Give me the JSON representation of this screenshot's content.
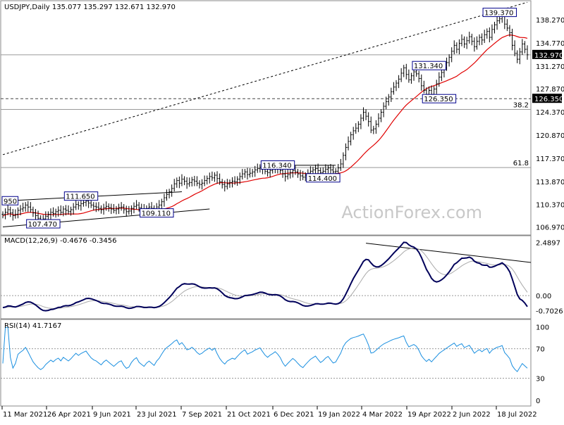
{
  "chart_data": {
    "type": "line",
    "symbol_header": "USDJPY,Daily  135.077 135.297 132.671 132.970",
    "watermark": "ActionForex.com",
    "x_ticks": [
      "11 Mar 2021",
      "26 Apr 2021",
      "9 Jun 2021",
      "23 Jul 2021",
      "7 Sep 2021",
      "21 Oct 2021",
      "6 Dec 2021",
      "19 Jan 2022",
      "4 Mar 2022",
      "19 Apr 2022",
      "2 Jun 2022",
      "18 Jul 2022"
    ],
    "price": {
      "y_ticks": [
        "138.270",
        "134.770",
        "131.270",
        "127.870",
        "124.370",
        "120.870",
        "117.370",
        "113.870",
        "110.370",
        "106.970"
      ],
      "y_tick_values": [
        138.27,
        134.77,
        131.27,
        127.87,
        124.37,
        120.87,
        117.37,
        113.87,
        110.37,
        106.97
      ],
      "ylim": [
        106.2,
        140.6
      ],
      "last_price_label": "132.970",
      "last_price": 132.97,
      "support_label": "126.350",
      "support_value": 126.35,
      "fib_38_label": "38.2",
      "fib_38_value": 124.73,
      "fib_61_label": "61.8",
      "fib_61_value": 115.95,
      "annotations": [
        {
          "label": "950",
          "index": 2,
          "value": 110.95
        },
        {
          "label": "111.650",
          "index": 30,
          "value": 111.65
        },
        {
          "label": "107.470",
          "index": 15,
          "value": 107.47
        },
        {
          "label": "109.110",
          "index": 60,
          "value": 109.11
        },
        {
          "label": "116.340",
          "index": 108,
          "value": 116.34
        },
        {
          "label": "114.400",
          "index": 126,
          "value": 114.4
        },
        {
          "label": "131.340",
          "index": 168,
          "value": 131.34
        },
        {
          "label": "126.350",
          "index": 172,
          "value": 126.35
        },
        {
          "label": "139.370",
          "index": 196,
          "value": 139.37
        }
      ],
      "close": [
        108.9,
        109.2,
        109.6,
        109.1,
        108.7,
        108.9,
        109.5,
        109.7,
        109.9,
        110.3,
        110.0,
        109.6,
        109.1,
        108.7,
        108.3,
        108.0,
        108.2,
        108.6,
        108.9,
        109.2,
        109.0,
        109.3,
        109.5,
        109.2,
        109.7,
        109.5,
        109.3,
        109.6,
        110.0,
        110.4,
        110.2,
        110.5,
        110.7,
        110.9,
        110.6,
        110.3,
        110.1,
        110.0,
        109.8,
        109.6,
        109.9,
        110.1,
        109.9,
        109.7,
        109.5,
        109.7,
        109.9,
        110.0,
        109.6,
        109.3,
        109.4,
        109.8,
        110.1,
        110.3,
        109.9,
        109.7,
        109.5,
        109.8,
        110.0,
        109.8,
        109.6,
        110.0,
        110.3,
        110.8,
        111.4,
        111.9,
        112.3,
        112.8,
        113.5,
        114.0,
        113.6,
        114.2,
        113.9,
        113.5,
        113.7,
        114.1,
        113.9,
        113.6,
        113.4,
        113.6,
        114.0,
        114.3,
        114.6,
        114.4,
        114.8,
        114.3,
        113.8,
        113.4,
        113.1,
        113.5,
        113.7,
        113.9,
        113.8,
        114.2,
        114.6,
        115.0,
        115.3,
        114.9,
        115.1,
        115.3,
        115.6,
        115.8,
        116.0,
        115.7,
        115.4,
        115.2,
        115.5,
        115.7,
        116.0,
        115.8,
        115.5,
        115.0,
        114.6,
        114.9,
        115.2,
        115.5,
        115.3,
        115.0,
        114.7,
        114.5,
        114.8,
        115.1,
        115.4,
        115.6,
        115.8,
        115.5,
        115.2,
        115.4,
        115.7,
        115.9,
        115.6,
        115.3,
        115.4,
        115.9,
        116.5,
        117.8,
        119.0,
        119.9,
        120.9,
        121.5,
        121.9,
        122.5,
        123.4,
        124.3,
        123.7,
        122.9,
        121.6,
        121.8,
        122.5,
        123.4,
        124.3,
        125.2,
        125.9,
        126.6,
        127.4,
        128.1,
        128.7,
        129.3,
        130.2,
        131.0,
        130.0,
        129.2,
        129.8,
        130.4,
        130.1,
        129.4,
        128.3,
        127.6,
        127.0,
        127.6,
        127.0,
        127.8,
        128.6,
        129.6,
        130.3,
        131.0,
        131.8,
        132.6,
        133.5,
        134.4,
        133.8,
        134.7,
        135.3,
        134.6,
        135.1,
        135.7,
        135.0,
        134.2,
        135.0,
        135.6,
        135.2,
        136.0,
        136.5,
        135.6,
        136.8,
        137.5,
        138.1,
        138.4,
        138.9,
        137.6,
        137.0,
        136.3,
        134.4,
        133.2,
        132.3,
        133.4,
        134.6,
        133.8,
        132.97
      ]
    },
    "macd": {
      "title": "MACD(12,26,9) -0.4676 -0.3456",
      "y_ticks": [
        "2.4897",
        "0.00",
        "-0.7026"
      ],
      "y_tick_values": [
        2.4897,
        0.0,
        -0.7026
      ],
      "ylim": [
        -0.98,
        2.7
      ]
    },
    "rsi": {
      "title": "RSI(14) 41.7167",
      "y_ticks": [
        "100",
        "70",
        "30",
        "0"
      ],
      "y_tick_values": [
        100,
        70,
        30,
        0
      ],
      "ylim": [
        -5,
        107
      ],
      "levels": [
        70,
        30
      ]
    },
    "colors": {
      "candle": "#000000",
      "ma": "#e00000",
      "macd": "#00005a",
      "signal": "#aaaaaa",
      "rsi": "#1a8fe0",
      "trend": "#000000",
      "grid_level": "#999999"
    }
  }
}
